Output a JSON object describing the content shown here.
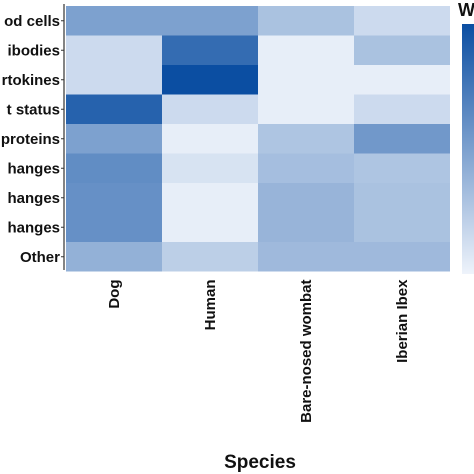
{
  "chart_data": {
    "type": "heatmap",
    "xlabel": "Species",
    "ylabel": "",
    "x_categories": [
      "Dog",
      "Human",
      "Bare-nosed wombat",
      "Iberian Ibex"
    ],
    "y_categories": [
      "od cells",
      "ibodies",
      "rtokines",
      "t status",
      "proteins",
      "hanges",
      "hanges",
      "hanges",
      "Other"
    ],
    "values": [
      [
        0.5,
        0.5,
        0.3,
        0.15
      ],
      [
        0.15,
        0.82,
        0.03,
        0.3
      ],
      [
        0.15,
        1.0,
        0.03,
        0.03
      ],
      [
        0.88,
        0.15,
        0.03,
        0.15
      ],
      [
        0.5,
        0.03,
        0.28,
        0.55
      ],
      [
        0.62,
        0.1,
        0.32,
        0.28
      ],
      [
        0.6,
        0.03,
        0.38,
        0.3
      ],
      [
        0.6,
        0.03,
        0.38,
        0.3
      ],
      [
        0.4,
        0.22,
        0.35,
        0.35
      ]
    ],
    "value_range": [
      0,
      1
    ],
    "color_low": "#eef3fb",
    "color_high": "#0b4ea2",
    "legend": {
      "position": "right",
      "title_fragment": "W"
    },
    "grid": false
  }
}
